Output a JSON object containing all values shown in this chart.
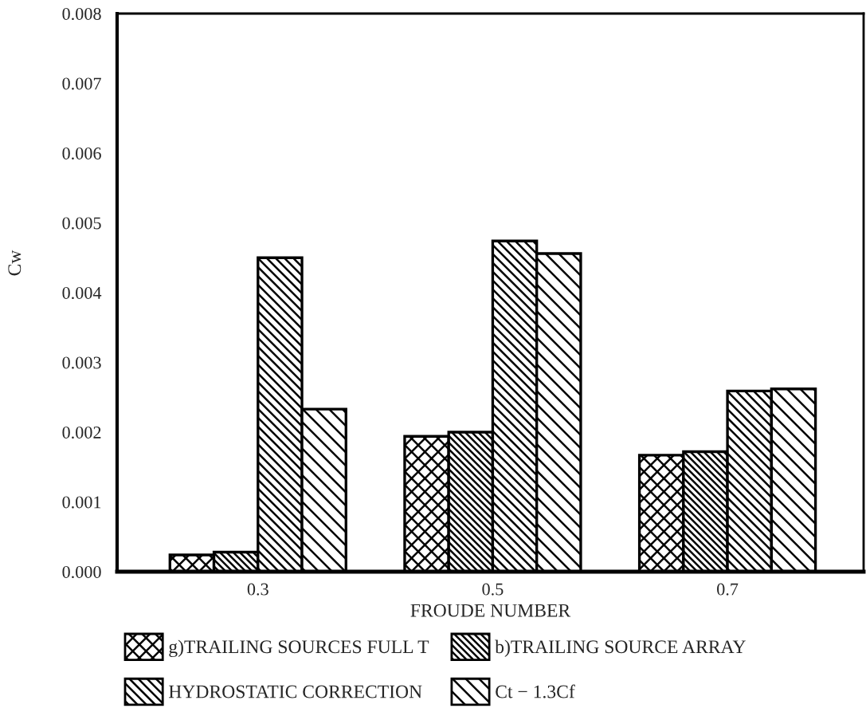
{
  "chart_data": {
    "type": "bar",
    "xlabel": "FROUDE NUMBER",
    "ylabel": "Cw",
    "categories": [
      "0.3",
      "0.5",
      "0.7"
    ],
    "series": [
      {
        "name": "g)TRAILING SOURCES FULL T",
        "color": "#000000",
        "values": [
          0.00024,
          0.00194,
          0.00167
        ]
      },
      {
        "name": "b)TRAILING SOURCE ARRAY",
        "color": "#000000",
        "values": [
          0.00028,
          0.002,
          0.00172
        ]
      },
      {
        "name": "HYDROSTATIC CORRECTION",
        "color": "#000000",
        "values": [
          0.0045,
          0.00474,
          0.00259
        ]
      },
      {
        "name": "Ct − 1.3Cf",
        "color": "#000000",
        "values": [
          0.00233,
          0.00456,
          0.00262
        ]
      }
    ],
    "ylim": [
      0,
      0.008
    ],
    "yticks": [
      {
        "value": 0,
        "label": "0.000"
      },
      0.001,
      0.002,
      0.003,
      0.004,
      0.005,
      0.006,
      0.007,
      0.008
    ],
    "legend": "bottom"
  }
}
